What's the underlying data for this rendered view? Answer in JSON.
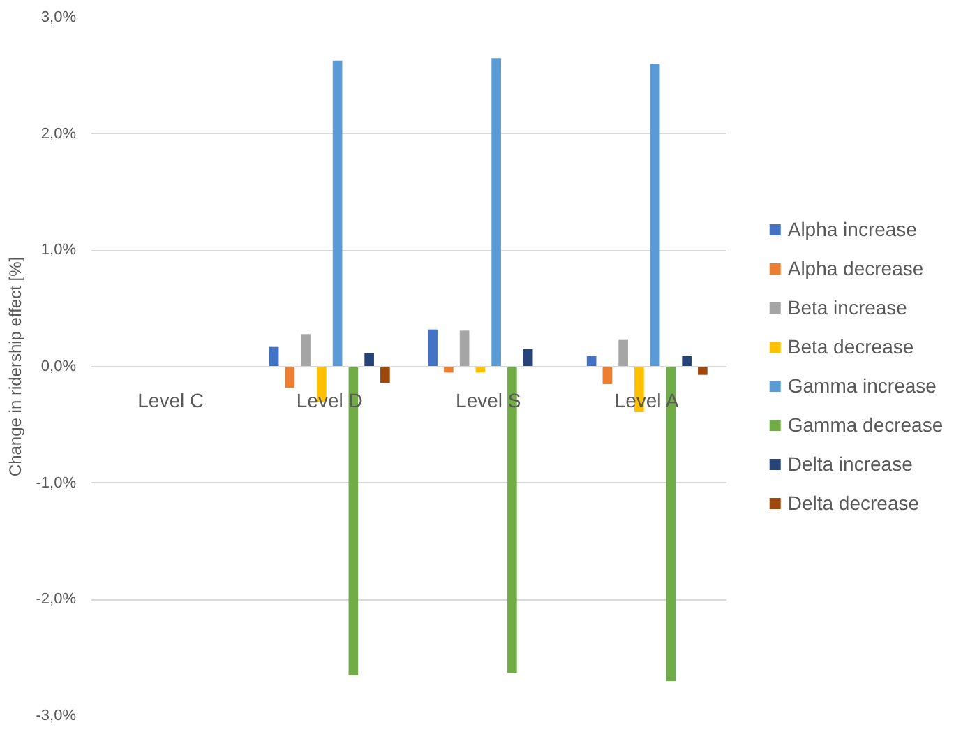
{
  "chart_data": {
    "type": "bar",
    "ylabel": "Change in ridership effect [%]",
    "categories": [
      "Level C",
      "Level D",
      "Level S",
      "Level A"
    ],
    "ylim": [
      -3.0,
      3.0
    ],
    "yticks": [
      {
        "value": -3,
        "label": "-3,0%"
      },
      {
        "value": -2,
        "label": "-2,0%"
      },
      {
        "value": -1,
        "label": "-1,0%"
      },
      {
        "value": 0,
        "label": "0,0%"
      },
      {
        "value": 1,
        "label": "1,0%"
      },
      {
        "value": 2,
        "label": "2,0%"
      },
      {
        "value": 3,
        "label": "3,0%"
      }
    ],
    "grid": "y",
    "legend": "right",
    "series": [
      {
        "name": "Alpha increase",
        "color": "#4472c4",
        "values": [
          null,
          0.17,
          0.32,
          0.09
        ]
      },
      {
        "name": "Alpha decrease",
        "color": "#ed7d31",
        "values": [
          null,
          -0.18,
          -0.05,
          -0.15
        ]
      },
      {
        "name": "Beta increase",
        "color": "#a5a5a5",
        "values": [
          null,
          0.28,
          0.31,
          0.23
        ]
      },
      {
        "name": "Beta decrease",
        "color": "#ffc000",
        "values": [
          null,
          -0.3,
          -0.05,
          -0.39
        ]
      },
      {
        "name": "Gamma increase",
        "color": "#5b9bd5",
        "values": [
          null,
          2.63,
          2.65,
          2.6
        ]
      },
      {
        "name": "Gamma decrease",
        "color": "#70ad47",
        "values": [
          null,
          -2.65,
          -2.63,
          -2.7
        ]
      },
      {
        "name": "Delta increase",
        "color": "#264478",
        "values": [
          null,
          0.12,
          0.15,
          0.09
        ]
      },
      {
        "name": "Delta decrease",
        "color": "#9e480e",
        "values": [
          null,
          -0.14,
          0.0,
          -0.07
        ]
      }
    ]
  }
}
